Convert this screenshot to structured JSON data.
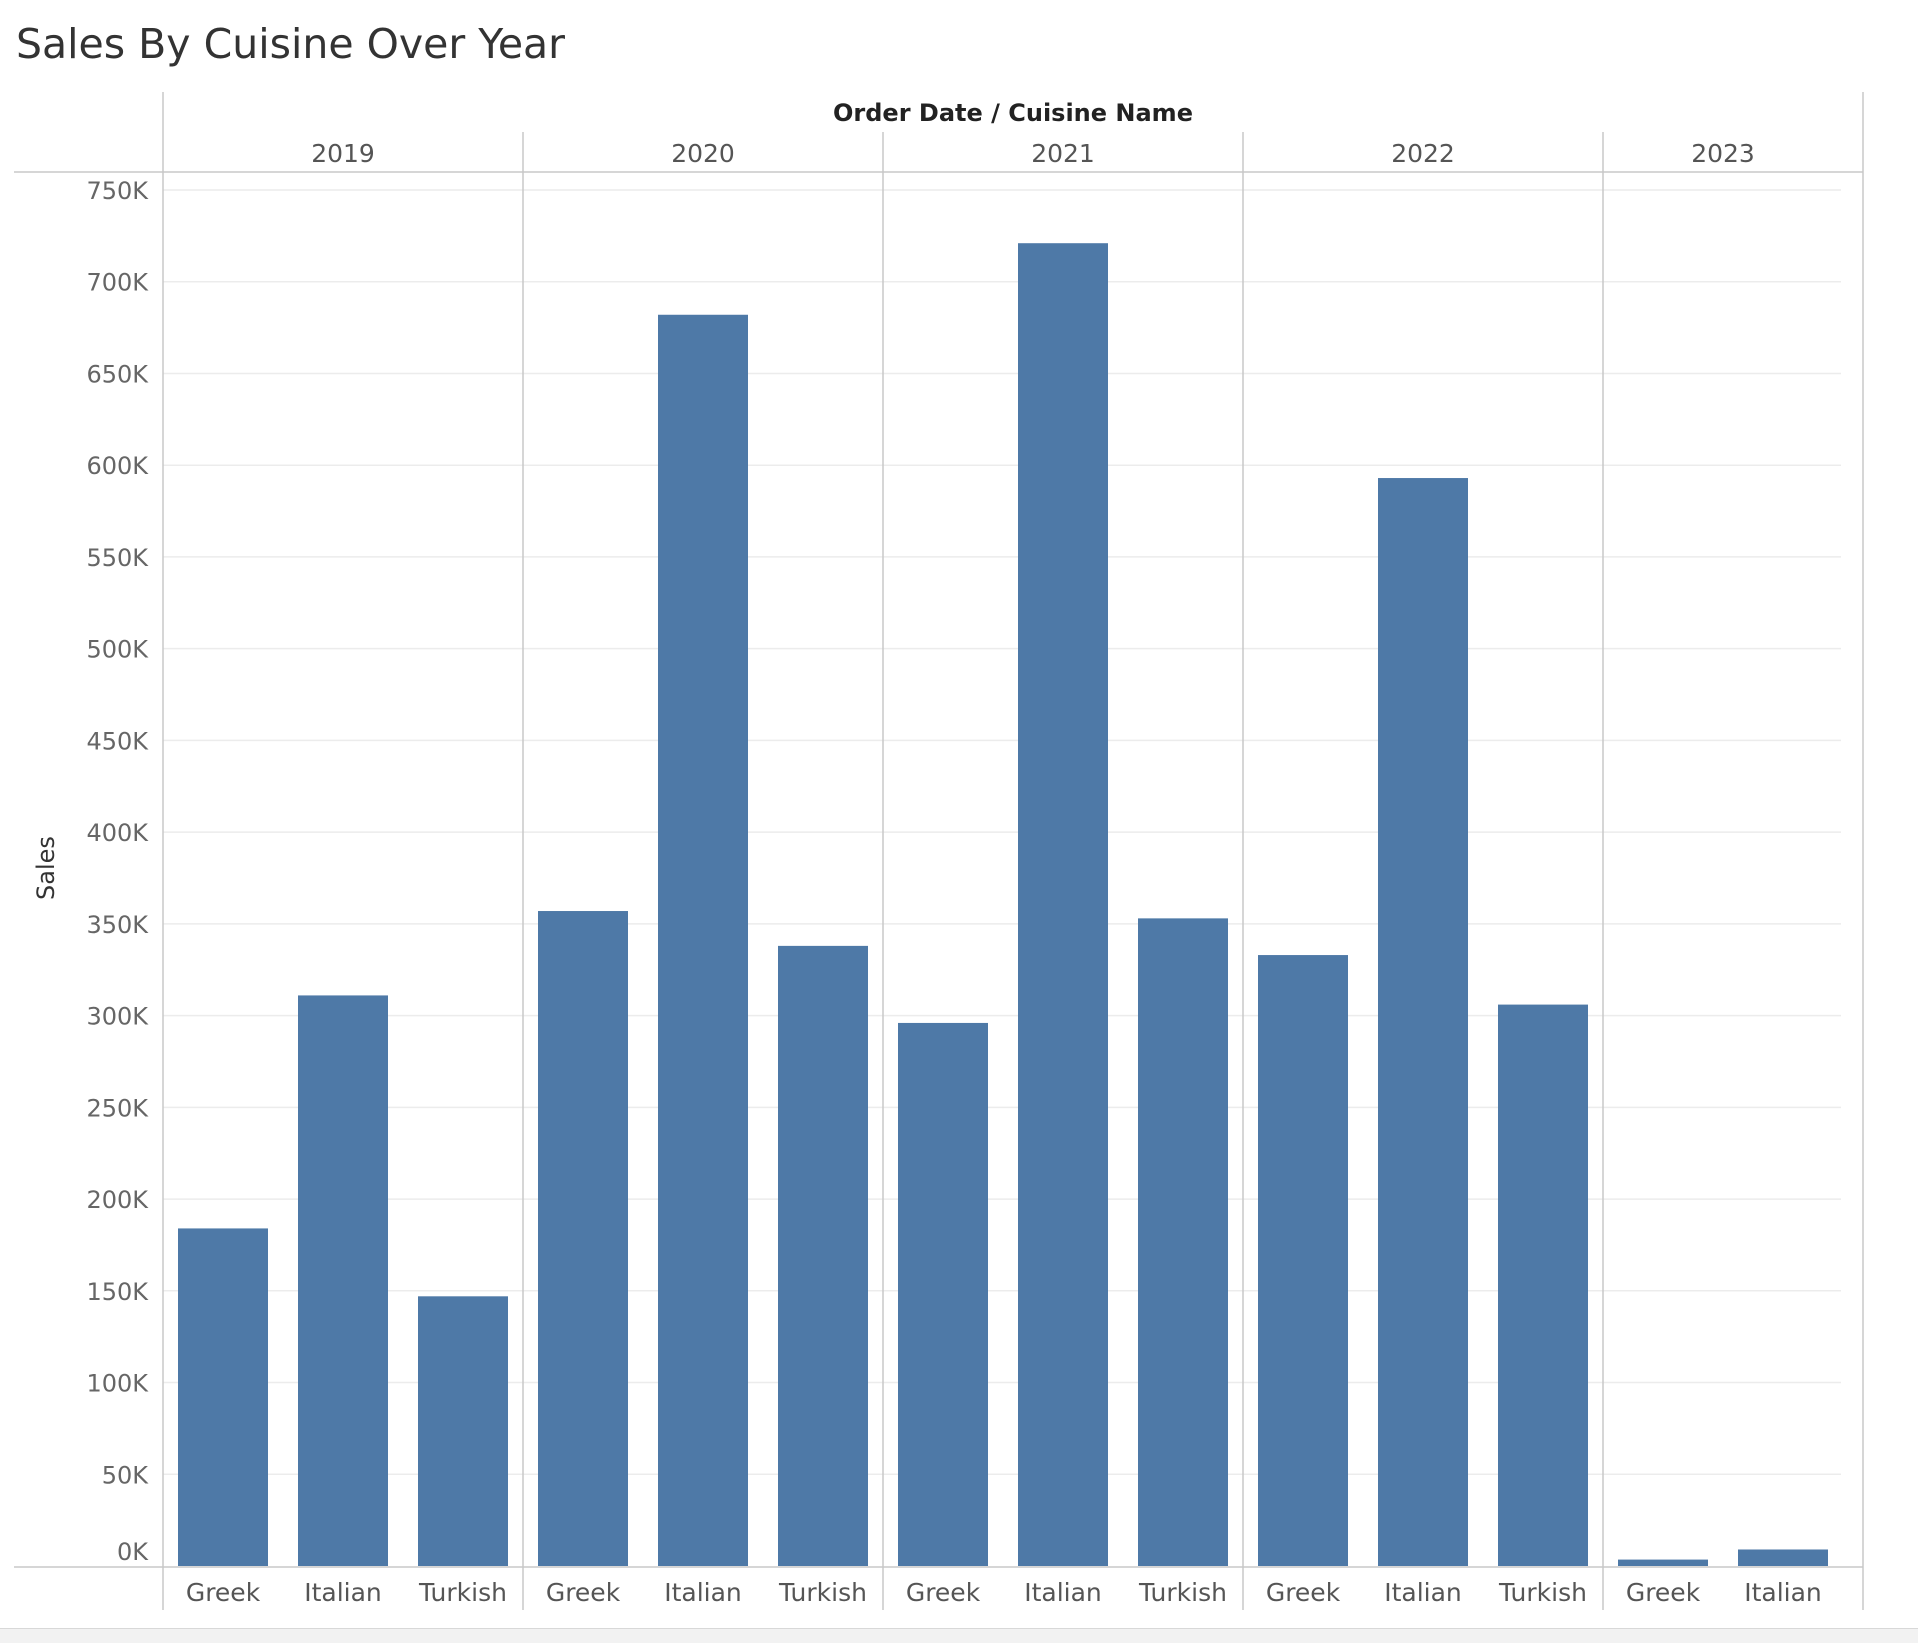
{
  "chart_data": {
    "type": "bar",
    "title": "Sales By Cuisine Over Year",
    "header": "Order Date  /  Cuisine Name",
    "ylabel": "Sales",
    "ylim": [
      0,
      750000
    ],
    "yticks": [
      "0K",
      "50K",
      "100K",
      "150K",
      "200K",
      "250K",
      "300K",
      "350K",
      "400K",
      "450K",
      "500K",
      "550K",
      "600K",
      "650K",
      "700K",
      "750K"
    ],
    "grid": true,
    "bar_color": "#4e79a7",
    "groups": [
      {
        "year": "2019",
        "categories": [
          "Greek",
          "Italian",
          "Turkish"
        ],
        "values": [
          184000,
          311000,
          147000
        ]
      },
      {
        "year": "2020",
        "categories": [
          "Greek",
          "Italian",
          "Turkish"
        ],
        "values": [
          357000,
          682000,
          338000
        ]
      },
      {
        "year": "2021",
        "categories": [
          "Greek",
          "Italian",
          "Turkish"
        ],
        "values": [
          296000,
          721000,
          353000
        ]
      },
      {
        "year": "2022",
        "categories": [
          "Greek",
          "Italian",
          "Turkish"
        ],
        "values": [
          333000,
          593000,
          306000
        ]
      },
      {
        "year": "2023",
        "categories": [
          "Greek",
          "Italian"
        ],
        "values": [
          3500,
          9000
        ]
      }
    ]
  }
}
